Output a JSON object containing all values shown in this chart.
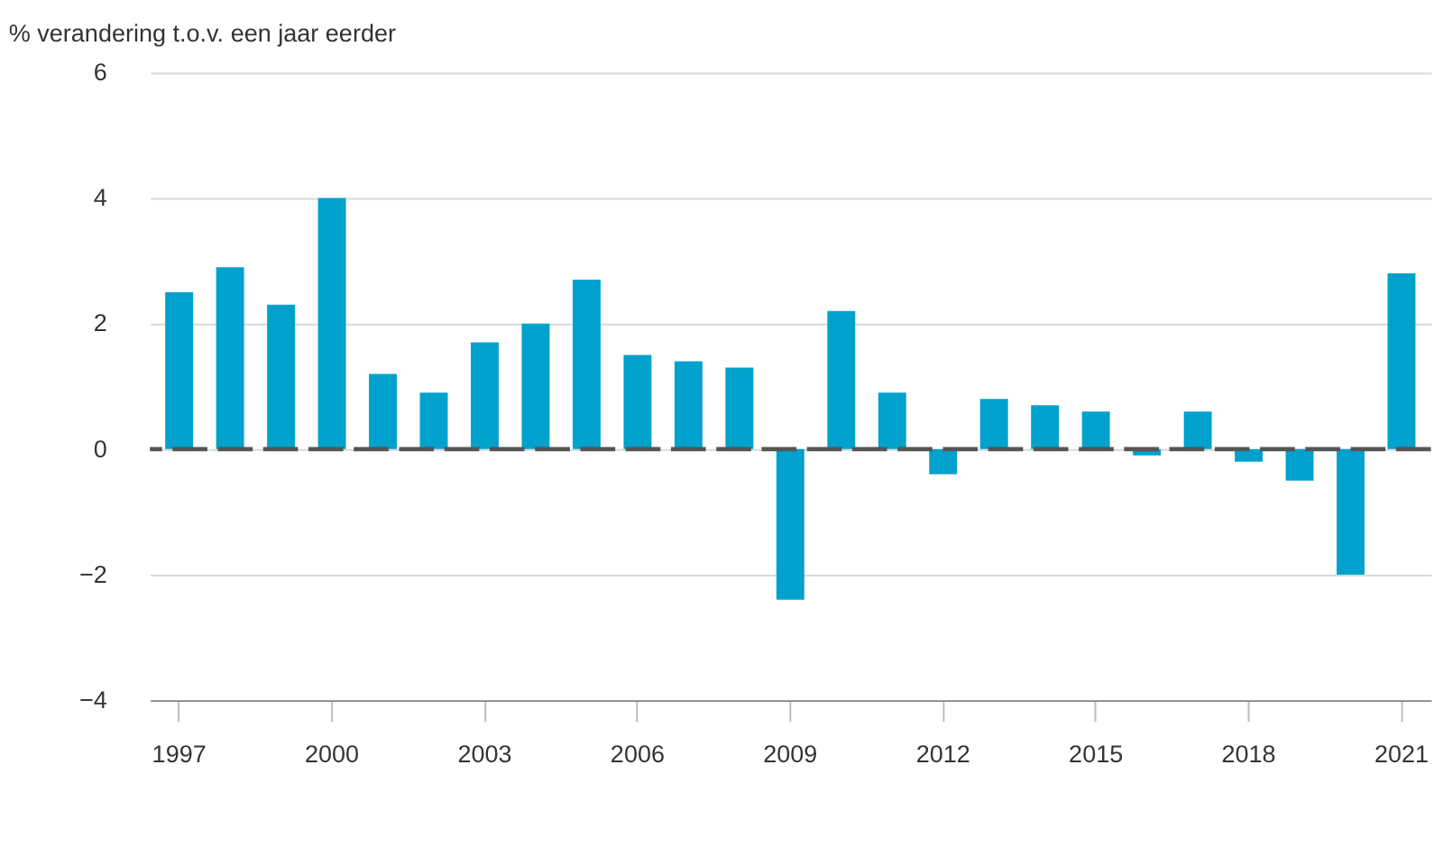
{
  "chart_data": {
    "type": "bar",
    "ylabel": "% verandering t.o.v. een jaar eerder",
    "categories": [
      "1997",
      null,
      null,
      "2000",
      null,
      null,
      "2003",
      null,
      null,
      "2006",
      null,
      null,
      "2009",
      null,
      null,
      "2012",
      null,
      null,
      "2015",
      null,
      null,
      "2018",
      null,
      null,
      "2021"
    ],
    "values": [
      2.5,
      2.9,
      2.3,
      4.0,
      1.2,
      0.9,
      1.7,
      2.0,
      2.7,
      1.5,
      1.4,
      1.3,
      -2.4,
      2.2,
      0.9,
      -0.4,
      0.8,
      0.7,
      0.6,
      -0.1,
      0.6,
      -0.2,
      -0.5,
      -2.0,
      2.8
    ],
    "color": "#00a1cd",
    "ylim": [
      -4,
      6
    ],
    "yticks": [
      -4,
      -2,
      0,
      2,
      4,
      6
    ],
    "grid": "y",
    "ref_lines": [
      {
        "axis": "y",
        "value": 0,
        "color": "#555555",
        "line_style": "dashed"
      }
    ]
  }
}
